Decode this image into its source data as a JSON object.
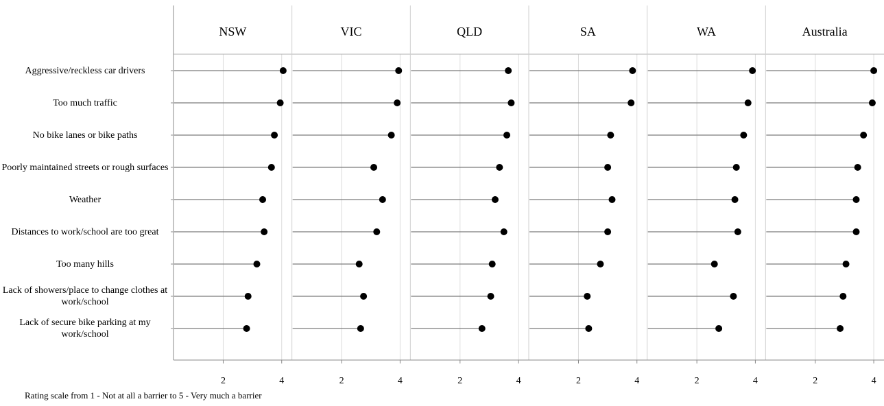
{
  "chart_data": {
    "type": "dot",
    "panels": [
      "NSW",
      "VIC",
      "QLD",
      "SA",
      "WA",
      "Australia"
    ],
    "categories": [
      "Aggressive/reckless car drivers",
      "Too much traffic",
      "No bike lanes or bike paths",
      "Poorly maintained streets or rough surfaces",
      "Weather",
      "Distances to work/school are too great",
      "Too many hills",
      "Lack of showers/place to change clothes at work/school",
      "Lack of secure bike parking at my work/school"
    ],
    "series": [
      {
        "panel": "NSW",
        "values": [
          4.05,
          3.95,
          3.75,
          3.65,
          3.35,
          3.4,
          3.15,
          2.85,
          2.8
        ]
      },
      {
        "panel": "VIC",
        "values": [
          3.95,
          3.9,
          3.7,
          3.1,
          3.4,
          3.2,
          2.6,
          2.75,
          2.65
        ]
      },
      {
        "panel": "QLD",
        "values": [
          3.65,
          3.75,
          3.6,
          3.35,
          3.2,
          3.5,
          3.1,
          3.05,
          2.75
        ]
      },
      {
        "panel": "SA",
        "values": [
          3.85,
          3.8,
          3.1,
          3.0,
          3.15,
          3.0,
          2.75,
          2.3,
          2.35
        ]
      },
      {
        "panel": "WA",
        "values": [
          3.9,
          3.75,
          3.6,
          3.35,
          3.3,
          3.4,
          2.6,
          3.25,
          2.75
        ]
      },
      {
        "panel": "Australia",
        "values": [
          4.0,
          3.95,
          3.65,
          3.45,
          3.4,
          3.4,
          3.05,
          2.95,
          2.85
        ]
      }
    ],
    "x_ticks": [
      2,
      4
    ],
    "xlim": [
      0.3,
      4.35
    ],
    "grid": true,
    "footnote": "Rating scale from 1 - Not at all a barrier to 5 - Very much a barrier"
  }
}
